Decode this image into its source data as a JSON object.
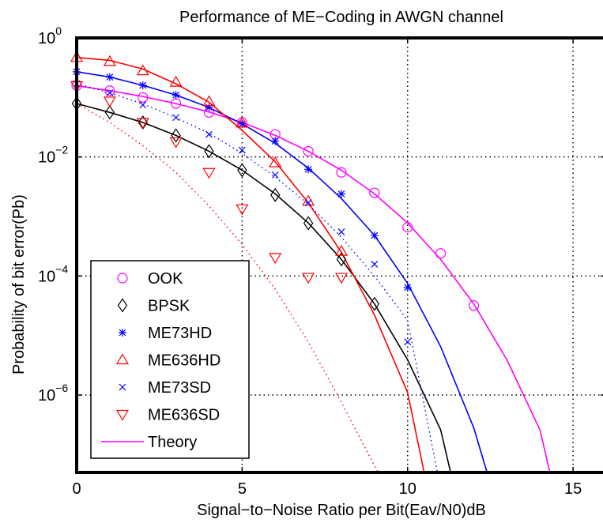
{
  "chart_data": {
    "type": "line",
    "title": "Performance of ME−Coding in AWGN channel",
    "xlabel": "Signal−to−Noise Ratio per Bit(Eav/N0)dB",
    "ylabel": "Probability  of bit error(Pb)",
    "xlim": [
      0,
      16
    ],
    "ylim_log10": [
      -7.3,
      0
    ],
    "y_scale": "log",
    "grid": "dotted",
    "x_ticks": [
      "0",
      "5",
      "10",
      "15"
    ],
    "x_tick_values": [
      0,
      5,
      10,
      15
    ],
    "y_ticks": [
      {
        "base": "10",
        "exp": "0",
        "exp_value": 0
      },
      {
        "base": "10",
        "exp": "−2",
        "exp_value": -2
      },
      {
        "base": "10",
        "exp": "−4",
        "exp_value": -4
      },
      {
        "base": "10",
        "exp": "−6",
        "exp_value": -6
      }
    ],
    "legend_position": "bottom-left",
    "series": [
      {
        "name": "OOK",
        "color": "#ff00ff",
        "marker": "circle",
        "x": [
          0,
          1,
          2,
          3,
          4,
          5,
          6,
          7,
          8,
          9,
          10,
          11,
          12
        ],
        "y": [
          0.158,
          0.13,
          0.1,
          0.079,
          0.056,
          0.038,
          0.024,
          0.0125,
          0.0055,
          0.0025,
          0.00066,
          0.00024,
          3.2e-05
        ]
      },
      {
        "name": "BPSK",
        "color": "#000000",
        "marker": "diamond",
        "x": [
          0,
          1,
          2,
          3,
          4,
          5,
          6,
          7,
          8,
          9
        ],
        "y": [
          0.079,
          0.056,
          0.038,
          0.023,
          0.0125,
          0.006,
          0.0023,
          0.00077,
          0.00019,
          3.4e-05
        ]
      },
      {
        "name": "ME73HD",
        "color": "#0000ff",
        "marker": "star",
        "x": [
          0,
          1,
          2,
          3,
          4,
          5,
          6,
          7,
          8,
          9,
          10
        ],
        "y": [
          0.27,
          0.22,
          0.16,
          0.11,
          0.068,
          0.036,
          0.0185,
          0.0062,
          0.0024,
          0.00048,
          6.4e-05
        ]
      },
      {
        "name": "ME636HD",
        "color": "#ff0000",
        "marker": "triangle-up",
        "x": [
          0,
          1,
          2,
          3,
          4,
          5,
          6,
          7,
          8
        ],
        "y": [
          0.47,
          0.4,
          0.28,
          0.18,
          0.085,
          0.037,
          0.008,
          0.0018,
          0.00026
        ]
      },
      {
        "name": "ME73SD",
        "color": "#0000ff",
        "marker": "x",
        "x": [
          0,
          1,
          2,
          3,
          4,
          5,
          6,
          7,
          8,
          9,
          10
        ],
        "y": [
          0.17,
          0.12,
          0.075,
          0.046,
          0.024,
          0.013,
          0.005,
          0.0017,
          0.00055,
          0.000158,
          7.8e-06
        ]
      },
      {
        "name": "ME636SD",
        "color": "#ff0000",
        "marker": "triangle-down",
        "x": [
          0,
          1,
          2,
          3,
          4,
          5,
          6,
          7,
          8
        ],
        "y": [
          0.158,
          0.087,
          0.038,
          0.018,
          0.0055,
          0.00135,
          0.000205,
          9.5e-05,
          9.5e-05
        ]
      },
      {
        "name": "Theory",
        "color": "#ff00ff",
        "marker": "line"
      }
    ],
    "theory_curves": [
      {
        "color": "#ff00ff",
        "style": "solid",
        "x": [
          0,
          1,
          2,
          3,
          4,
          5,
          6,
          7,
          8,
          9,
          10,
          11,
          12,
          13,
          14,
          14.3
        ],
        "y": [
          0.158,
          0.13,
          0.104,
          0.079,
          0.057,
          0.038,
          0.023,
          0.0125,
          0.006,
          0.0024,
          0.00078,
          0.00019,
          3.4e-05,
          3.9e-06,
          2.6e-07,
          5e-08
        ]
      },
      {
        "color": "#000000",
        "style": "solid",
        "x": [
          0,
          1,
          2,
          3,
          4,
          5,
          6,
          7,
          8,
          9,
          10,
          11,
          11.3
        ],
        "y": [
          0.079,
          0.056,
          0.038,
          0.023,
          0.0125,
          0.006,
          0.0024,
          0.00078,
          0.00019,
          3.4e-05,
          3.9e-06,
          2.6e-07,
          5e-08
        ]
      },
      {
        "color": "#0000ff",
        "style": "solid",
        "x": [
          0,
          1,
          2,
          3,
          4,
          5,
          6,
          7,
          8,
          9,
          10,
          11,
          12,
          12.4
        ],
        "y": [
          0.27,
          0.22,
          0.16,
          0.11,
          0.068,
          0.036,
          0.017,
          0.0065,
          0.002,
          0.00048,
          7.5e-05,
          6.5e-06,
          2.8e-07,
          5e-08
        ]
      },
      {
        "color": "#ff0000",
        "style": "solid",
        "x": [
          0,
          1,
          2,
          3,
          4,
          5,
          6,
          7,
          8,
          9,
          10,
          10.5
        ],
        "y": [
          0.47,
          0.42,
          0.3,
          0.17,
          0.083,
          0.028,
          0.0083,
          0.0017,
          0.00025,
          2.2e-05,
          1.1e-06,
          5e-08
        ]
      },
      {
        "color": "#0000ff",
        "style": "dotted",
        "x": [
          0,
          1,
          2,
          3,
          4,
          5,
          6,
          7,
          8,
          9,
          10,
          10.9
        ],
        "y": [
          0.17,
          0.12,
          0.078,
          0.046,
          0.025,
          0.0115,
          0.0046,
          0.0016,
          0.00045,
          0.0001,
          1.8e-05,
          5e-08
        ]
      },
      {
        "color": "#ff0000",
        "style": "dotted",
        "x": [
          0,
          1,
          2,
          3,
          4,
          5,
          6,
          7,
          8,
          9,
          9.5
        ],
        "y": [
          0.079,
          0.038,
          0.0155,
          0.0055,
          0.0015,
          0.00034,
          6e-05,
          7.8e-06,
          7.5e-07,
          6.5e-08,
          2e-08
        ]
      }
    ]
  }
}
